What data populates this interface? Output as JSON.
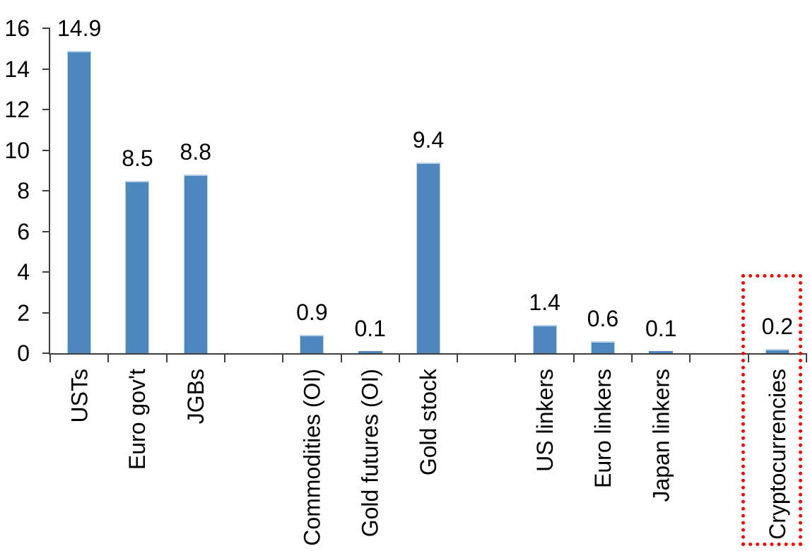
{
  "figure": {
    "title": "",
    "description": "Vertical bar chart of market sizes with Cryptocurrencies highlighted by a red dotted box"
  },
  "chart_data": {
    "type": "bar",
    "title": "",
    "xlabel": "",
    "ylabel": "",
    "categories": [
      "USTs",
      "Euro gov't",
      "JGBs",
      "",
      "Commodities (OI)",
      "Gold futures (OI)",
      "Gold stock",
      "",
      "US linkers",
      "Euro linkers",
      "Japan linkers",
      "",
      "Cryptocurrencies"
    ],
    "values": [
      14.9,
      8.5,
      8.8,
      null,
      0.9,
      0.1,
      9.4,
      null,
      1.4,
      0.6,
      0.1,
      null,
      0.2
    ],
    "data_labels": [
      "14.9",
      "8.5",
      "8.8",
      null,
      "0.9",
      "0.1",
      "9.4",
      null,
      "1.4",
      "0.6",
      "0.1",
      null,
      "0.2"
    ],
    "ylim": [
      0,
      16
    ],
    "yticks": [
      0,
      2,
      4,
      6,
      8,
      10,
      12,
      14,
      16
    ],
    "ytick_labels": [
      "0",
      "2",
      "4",
      "6",
      "8",
      "10",
      "12",
      "14",
      "16"
    ],
    "grid": false,
    "legend": null,
    "bar_color": "#4D87BE",
    "bar_edge_color": "#BCD4EA",
    "axis_color": "#3F3F3F",
    "text_color": "#000000",
    "highlight": {
      "category": "Cryptocurrencies",
      "box_color": "#FF0000",
      "box_style": "dotted"
    }
  }
}
